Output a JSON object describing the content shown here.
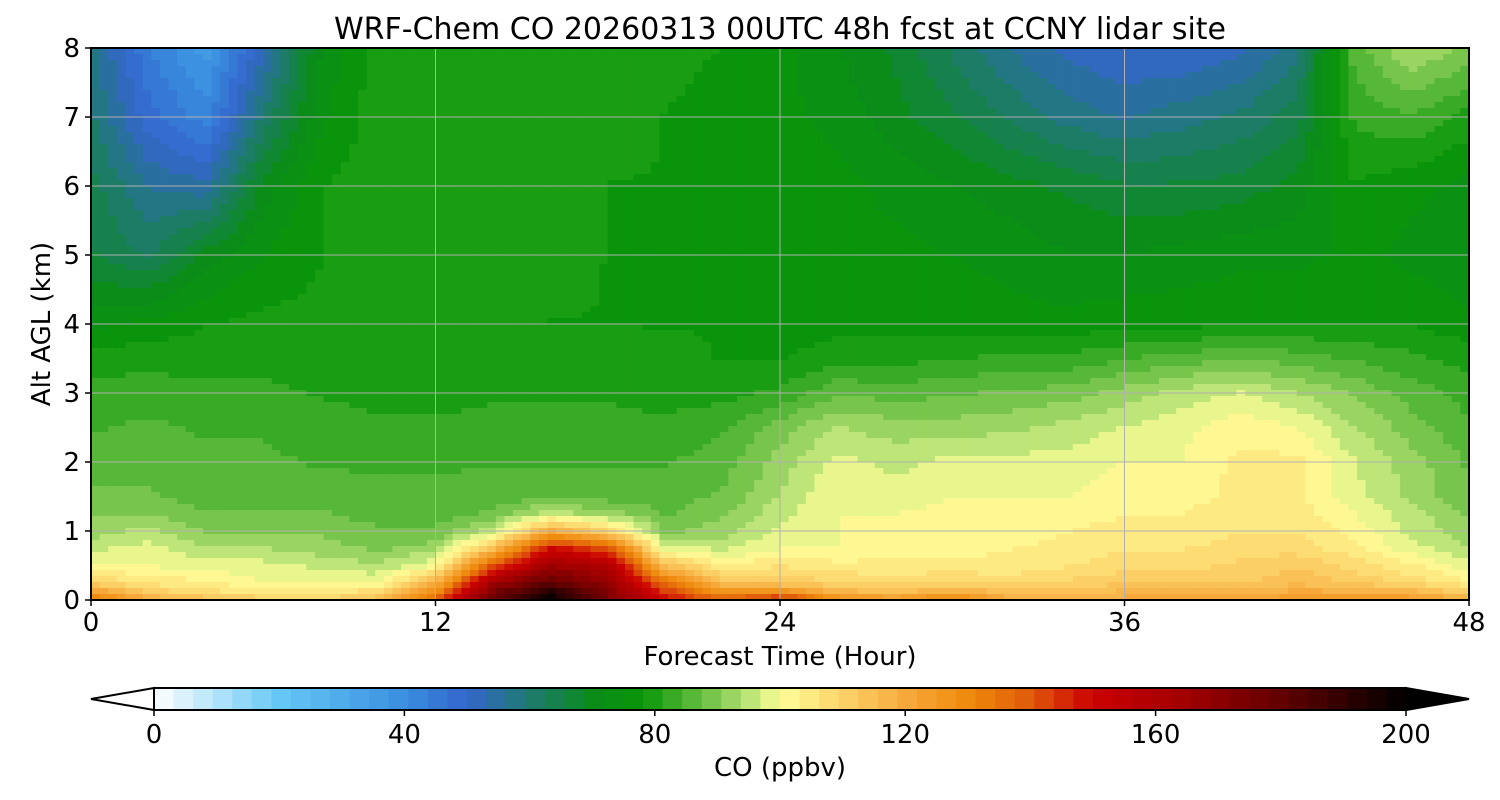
{
  "chart_data": {
    "type": "heatmap",
    "title": "WRF-Chem CO  20260313 00UTC 48h fcst at CCNY lidar site",
    "xlabel": "Forecast Time (Hour)",
    "ylabel": "Alt AGL (km)",
    "xlim": [
      0,
      48
    ],
    "ylim": [
      0,
      8
    ],
    "x_ticks": [
      0,
      12,
      24,
      36,
      48
    ],
    "y_ticks": [
      0,
      1,
      2,
      3,
      4,
      5,
      6,
      7,
      8
    ],
    "grid": true,
    "colorbar": {
      "label": "CO  (ppbv)",
      "range": [
        0,
        200
      ],
      "ticks": [
        0,
        40,
        80,
        120,
        160,
        200
      ],
      "extend": "both",
      "stops": [
        {
          "value": 0,
          "color": "#ffffff"
        },
        {
          "value": 20,
          "color": "#66c8f5"
        },
        {
          "value": 40,
          "color": "#3a8fe0"
        },
        {
          "value": 50,
          "color": "#3366cc"
        },
        {
          "value": 60,
          "color": "#1e7a6e"
        },
        {
          "value": 70,
          "color": "#0b8c1a"
        },
        {
          "value": 78,
          "color": "#089608"
        },
        {
          "value": 88,
          "color": "#6cc043"
        },
        {
          "value": 96,
          "color": "#c6e87c"
        },
        {
          "value": 100,
          "color": "#ffff99"
        },
        {
          "value": 110,
          "color": "#fcd26a"
        },
        {
          "value": 120,
          "color": "#f7a93c"
        },
        {
          "value": 130,
          "color": "#ef8a0c"
        },
        {
          "value": 140,
          "color": "#e05a0a"
        },
        {
          "value": 150,
          "color": "#cc0000"
        },
        {
          "value": 165,
          "color": "#a00000"
        },
        {
          "value": 180,
          "color": "#620000"
        },
        {
          "value": 200,
          "color": "#000000"
        }
      ]
    },
    "x_hours": [
      0,
      2,
      4,
      6,
      8,
      10,
      12,
      14,
      16,
      18,
      20,
      22,
      24,
      26,
      28,
      30,
      32,
      34,
      36,
      38,
      40,
      42,
      44,
      46,
      48
    ],
    "z_km": [
      0,
      0.1,
      0.25,
      0.5,
      0.75,
      1,
      1.25,
      1.5,
      2,
      2.5,
      3,
      3.5,
      4,
      5,
      6,
      7,
      8
    ],
    "values_ppbv": [
      [
        135,
        120,
        115,
        112,
        110,
        115,
        140,
        180,
        200,
        175,
        150,
        140,
        150,
        130,
        125,
        135,
        120,
        118,
        120,
        122,
        120,
        125,
        125,
        125,
        120
      ],
      [
        125,
        112,
        108,
        105,
        104,
        110,
        130,
        175,
        195,
        172,
        145,
        128,
        130,
        118,
        116,
        120,
        115,
        115,
        117,
        118,
        117,
        120,
        120,
        118,
        112
      ],
      [
        110,
        105,
        104,
        100,
        100,
        100,
        118,
        165,
        180,
        168,
        135,
        115,
        112,
        110,
        108,
        110,
        108,
        110,
        112,
        112,
        112,
        115,
        112,
        108,
        104
      ],
      [
        100,
        100,
        98,
        98,
        96,
        94,
        100,
        140,
        165,
        160,
        115,
        103,
        106,
        104,
        104,
        104,
        104,
        106,
        108,
        108,
        110,
        112,
        108,
        104,
        98
      ],
      [
        96,
        98,
        94,
        94,
        92,
        90,
        92,
        115,
        150,
        140,
        98,
        96,
        100,
        100,
        102,
        102,
        103,
        104,
        106,
        106,
        108,
        108,
        104,
        98,
        94
      ],
      [
        92,
        95,
        90,
        90,
        90,
        88,
        88,
        95,
        120,
        110,
        90,
        92,
        98,
        100,
        100,
        102,
        102,
        103,
        104,
        104,
        106,
        106,
        102,
        96,
        92
      ],
      [
        90,
        90,
        88,
        88,
        88,
        86,
        86,
        88,
        96,
        92,
        87,
        90,
        96,
        100,
        100,
        101,
        101,
        102,
        103,
        103,
        105,
        105,
        100,
        95,
        90
      ],
      [
        88,
        88,
        86,
        86,
        86,
        85,
        85,
        86,
        86,
        86,
        86,
        88,
        94,
        100,
        98,
        100,
        100,
        100,
        102,
        102,
        104,
        104,
        98,
        93,
        88
      ],
      [
        86,
        86,
        85,
        85,
        84,
        84,
        84,
        84,
        84,
        84,
        84,
        86,
        92,
        98,
        96,
        98,
        98,
        98,
        100,
        100,
        104,
        104,
        97,
        92,
        87
      ],
      [
        84,
        85,
        84,
        84,
        83,
        82,
        82,
        82,
        82,
        82,
        82,
        84,
        89,
        94,
        92,
        92,
        93,
        95,
        97,
        99,
        102,
        100,
        94,
        89,
        85
      ],
      [
        82,
        83,
        82,
        82,
        81,
        80,
        80,
        81,
        81,
        81,
        80,
        80,
        82,
        87,
        86,
        87,
        88,
        89,
        92,
        95,
        97,
        94,
        90,
        86,
        83
      ],
      [
        80,
        80,
        80,
        80,
        80,
        80,
        80,
        80,
        80,
        80,
        79,
        78,
        78,
        80,
        80,
        81,
        82,
        82,
        84,
        86,
        87,
        86,
        84,
        82,
        80
      ],
      [
        74,
        76,
        78,
        79,
        79,
        80,
        80,
        80,
        78,
        78,
        78,
        78,
        76,
        77,
        77,
        77,
        76,
        76,
        77,
        77,
        78,
        78,
        78,
        78,
        76
      ],
      [
        66,
        62,
        70,
        75,
        78,
        80,
        80,
        80,
        80,
        78,
        77,
        76,
        75,
        76,
        76,
        75,
        74,
        72,
        72,
        73,
        74,
        74,
        76,
        74,
        72
      ],
      [
        64,
        56,
        54,
        70,
        78,
        80,
        80,
        80,
        80,
        78,
        78,
        76,
        76,
        76,
        74,
        72,
        70,
        68,
        66,
        66,
        67,
        70,
        78,
        76,
        74
      ],
      [
        60,
        48,
        42,
        60,
        74,
        80,
        80,
        80,
        80,
        80,
        78,
        76,
        76,
        74,
        70,
        66,
        62,
        58,
        56,
        58,
        60,
        64,
        82,
        84,
        80
      ],
      [
        58,
        44,
        36,
        52,
        72,
        80,
        80,
        80,
        80,
        80,
        80,
        78,
        76,
        72,
        68,
        62,
        56,
        52,
        50,
        50,
        52,
        58,
        86,
        94,
        90
      ]
    ]
  }
}
